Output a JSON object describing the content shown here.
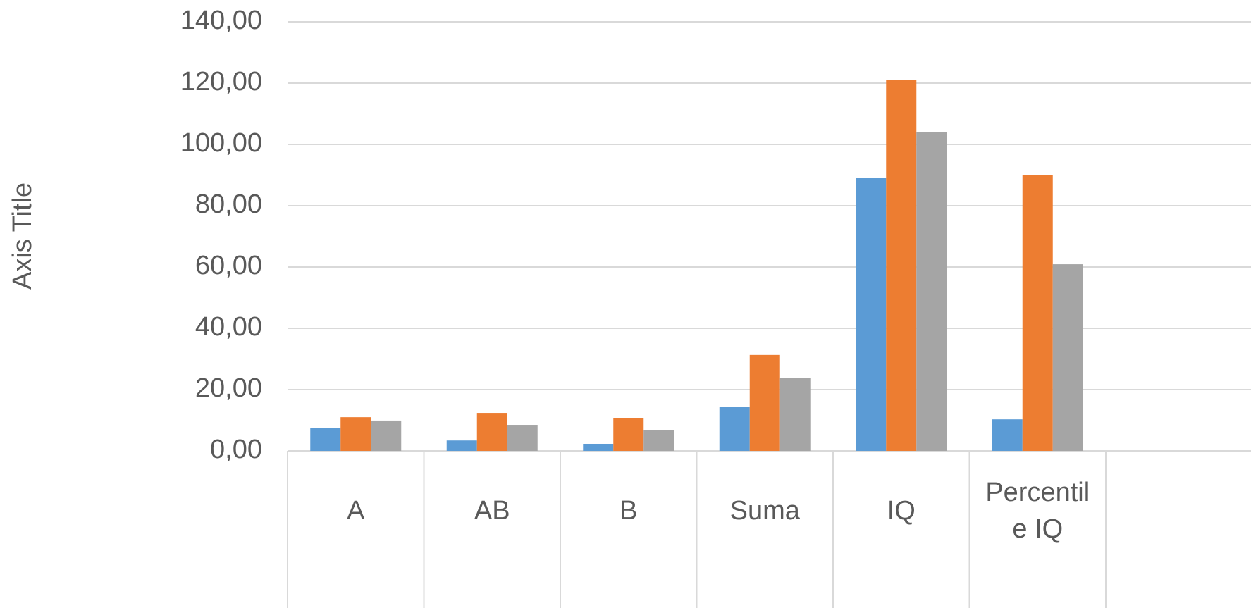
{
  "chart_data": {
    "type": "bar",
    "y_label": "Axis Title",
    "categories": [
      "A",
      "AB",
      "B",
      "Suma",
      "IQ",
      "Percentile IQ"
    ],
    "series": [
      {
        "color": "#5b9bd5",
        "values": [
          7.4,
          3.4,
          2.3,
          14.3,
          89,
          10.3
        ]
      },
      {
        "color": "#ed7d31",
        "values": [
          11,
          12.4,
          10.6,
          31.3,
          121.1,
          90.1
        ]
      },
      {
        "color": "#a5a5a5",
        "values": [
          9.9,
          8.5,
          6.7,
          23.7,
          104.1,
          60.9
        ]
      }
    ],
    "ylim": [
      0,
      140
    ],
    "yticks": [
      {
        "value": 0,
        "label": "0,00"
      },
      {
        "value": 20,
        "label": "20,00"
      },
      {
        "value": 40,
        "label": "40,00"
      },
      {
        "value": 60,
        "label": "60,00"
      },
      {
        "value": 80,
        "label": "80,00"
      },
      {
        "value": 100,
        "label": "100,00"
      },
      {
        "value": 120,
        "label": "120,00"
      },
      {
        "value": 140,
        "label": "140,00"
      }
    ],
    "grid": true
  }
}
